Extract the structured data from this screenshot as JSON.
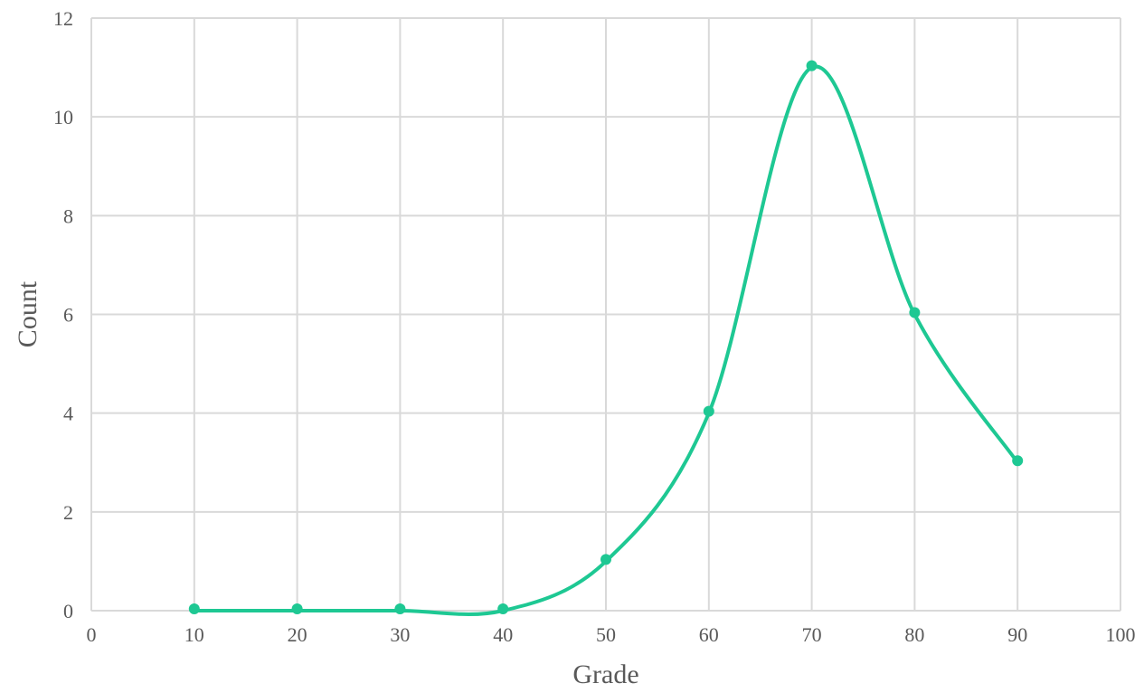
{
  "chart_data": {
    "type": "scatter",
    "smooth": true,
    "title": "",
    "xlabel": "Grade",
    "ylabel": "Count",
    "xlim": [
      0,
      100
    ],
    "ylim": [
      0,
      12
    ],
    "xticks": [
      0,
      10,
      20,
      30,
      40,
      50,
      60,
      70,
      80,
      90,
      100
    ],
    "yticks": [
      0,
      2,
      4,
      6,
      8,
      10,
      12
    ],
    "grid": true,
    "legend": "none",
    "series": [
      {
        "color": "#1ec893",
        "points": [
          {
            "x": 10,
            "y": 0
          },
          {
            "x": 20,
            "y": 0
          },
          {
            "x": 30,
            "y": 0
          },
          {
            "x": 40,
            "y": 0
          },
          {
            "x": 50,
            "y": 1
          },
          {
            "x": 60,
            "y": 4
          },
          {
            "x": 70,
            "y": 11
          },
          {
            "x": 80,
            "y": 6
          },
          {
            "x": 90,
            "y": 3
          }
        ]
      }
    ]
  }
}
